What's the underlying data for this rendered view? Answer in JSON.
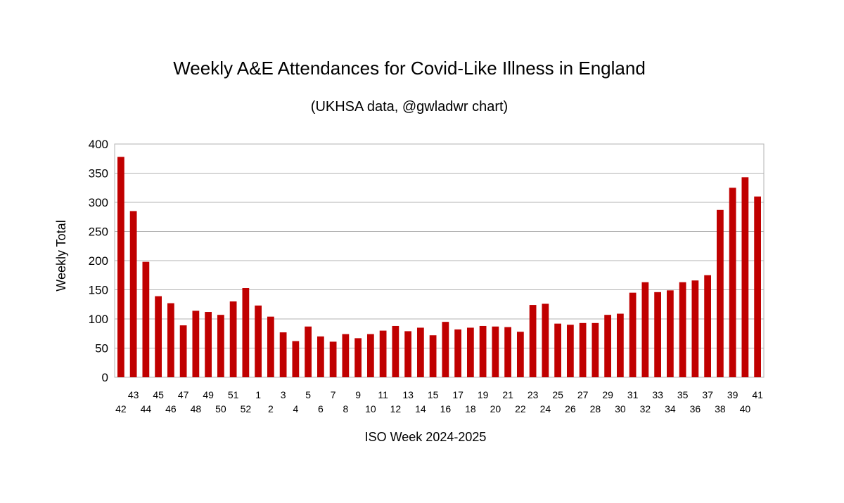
{
  "chart_data": {
    "type": "bar",
    "title": "Weekly A&E Attendances for Covid-Like Illness in England",
    "subtitle": "(UKHSA data, @gwladwr chart)",
    "xlabel": "ISO Week 2024-2025",
    "ylabel": "Weekly Total",
    "ylim": [
      0,
      400
    ],
    "yticks": [
      0,
      50,
      100,
      150,
      200,
      250,
      300,
      350,
      400
    ],
    "grid": true,
    "bar_color": "#c00000",
    "categories": [
      "42",
      "43",
      "44",
      "45",
      "46",
      "47",
      "48",
      "49",
      "50",
      "51",
      "52",
      "1",
      "2",
      "3",
      "4",
      "5",
      "6",
      "7",
      "8",
      "9",
      "10",
      "11",
      "12",
      "13",
      "14",
      "15",
      "16",
      "17",
      "18",
      "19",
      "20",
      "21",
      "22",
      "23",
      "24",
      "25",
      "26",
      "27",
      "28",
      "29",
      "30",
      "31",
      "32",
      "33",
      "34",
      "35",
      "36",
      "37",
      "38",
      "39",
      "40",
      "41"
    ],
    "values": [
      378,
      285,
      198,
      139,
      127,
      89,
      114,
      112,
      107,
      130,
      153,
      123,
      104,
      77,
      62,
      87,
      70,
      61,
      74,
      67,
      74,
      80,
      88,
      79,
      85,
      72,
      95,
      82,
      85,
      88,
      87,
      86,
      78,
      124,
      126,
      92,
      90,
      93,
      93,
      107,
      109,
      145,
      163,
      146,
      149,
      163,
      166,
      175,
      287,
      325,
      343,
      310
    ]
  }
}
